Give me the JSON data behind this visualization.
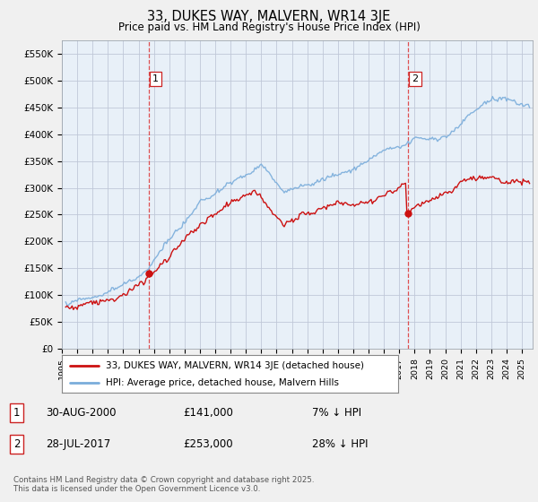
{
  "title": "33, DUKES WAY, MALVERN, WR14 3JE",
  "subtitle": "Price paid vs. HM Land Registry's House Price Index (HPI)",
  "ylabel_ticks": [
    "£0",
    "£50K",
    "£100K",
    "£150K",
    "£200K",
    "£250K",
    "£300K",
    "£350K",
    "£400K",
    "£450K",
    "£500K",
    "£550K"
  ],
  "ylim": [
    0,
    575000
  ],
  "xlim_start": 1995.2,
  "xlim_end": 2025.7,
  "marker1_x": 2000.66,
  "marker1_y": 141000,
  "marker2_x": 2017.57,
  "marker2_y": 253000,
  "vline1_x": 2000.66,
  "vline2_x": 2017.57,
  "hpi_color": "#7aaddb",
  "hpi_fill_color": "#ddeeff",
  "price_color": "#cc1111",
  "background_color": "#f0f0f0",
  "plot_bg_color": "#e8f0f8",
  "grid_color": "#c0c8d8",
  "legend_label_price": "33, DUKES WAY, MALVERN, WR14 3JE (detached house)",
  "legend_label_hpi": "HPI: Average price, detached house, Malvern Hills",
  "annotation1_date": "30-AUG-2000",
  "annotation1_price": "£141,000",
  "annotation1_hpi": "7% ↓ HPI",
  "annotation2_date": "28-JUL-2017",
  "annotation2_price": "£253,000",
  "annotation2_hpi": "28% ↓ HPI",
  "footer": "Contains HM Land Registry data © Crown copyright and database right 2025.\nThis data is licensed under the Open Government Licence v3.0."
}
